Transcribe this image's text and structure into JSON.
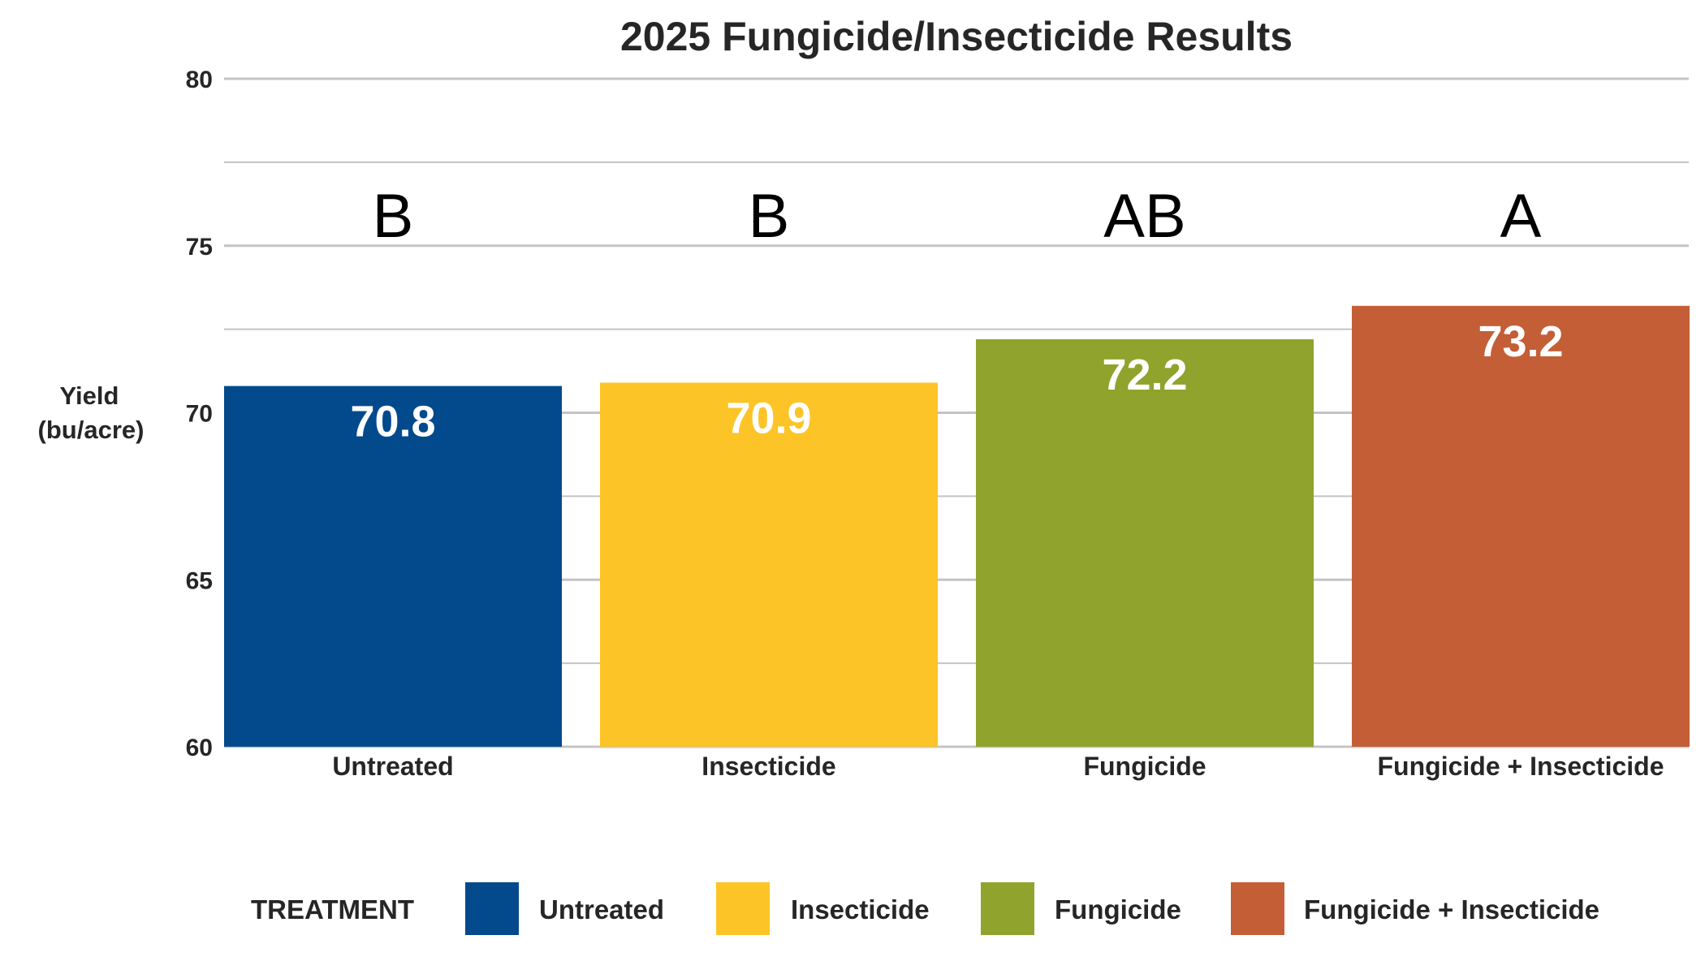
{
  "chart_data": {
    "type": "bar",
    "title": "2025 Fungicide/Insecticide Results",
    "xlabel": "",
    "ylabel": [
      "Yield",
      "(bu/acre)"
    ],
    "ylim": [
      60,
      80
    ],
    "yticks": [
      60,
      65,
      70,
      75,
      80
    ],
    "minor_gridlines": [
      62.5,
      67.5,
      72.5,
      77.5
    ],
    "grid": true,
    "categories": [
      "Untreated",
      "Insecticide",
      "Fungicide",
      "Fungicide + Insecticide"
    ],
    "values": [
      70.8,
      70.9,
      72.2,
      73.2
    ],
    "value_labels": [
      "70.8",
      "70.9",
      "72.2",
      "73.2"
    ],
    "significance_letters": [
      "B",
      "B",
      "AB",
      "A"
    ],
    "colors": [
      "#034A8C",
      "#FDC428",
      "#90A32C",
      "#C45E36"
    ],
    "legend": {
      "title": "TREATMENT",
      "position": "bottom",
      "entries": [
        "Untreated",
        "Insecticide",
        "Fungicide",
        "Fungicide + Insecticide"
      ]
    }
  }
}
